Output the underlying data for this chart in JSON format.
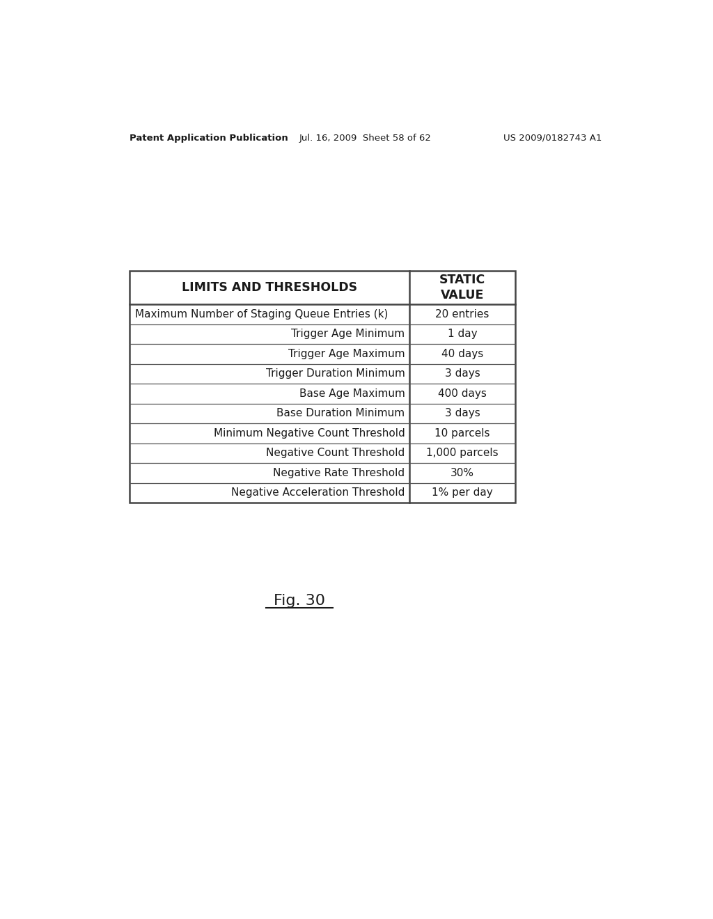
{
  "header_left": "Patent Application Publication",
  "header_mid": "Jul. 16, 2009  Sheet 58 of 62",
  "header_right": "US 2009/0182743 A1",
  "fig_label": "Fig. 30",
  "col1_header": "LIMITS AND THRESHOLDS",
  "col2_header": "STATIC\nVALUE",
  "rows": [
    [
      "Maximum Number of Staging Queue Entries (k)",
      "20 entries"
    ],
    [
      "Trigger Age Minimum",
      "1 day"
    ],
    [
      "Trigger Age Maximum",
      "40 days"
    ],
    [
      "Trigger Duration Minimum",
      "3 days"
    ],
    [
      "Base Age Maximum",
      "400 days"
    ],
    [
      "Base Duration Minimum",
      "3 days"
    ],
    [
      "Minimum Negative Count Threshold",
      "10 parcels"
    ],
    [
      "Negative Count Threshold",
      "1,000 parcels"
    ],
    [
      "Negative Rate Threshold",
      "30%"
    ],
    [
      "Negative Acceleration Threshold",
      "1% per day"
    ]
  ],
  "background_color": "#ffffff",
  "text_color": "#1a1a1a",
  "table_border_color": "#444444",
  "table_inner_color": "#555555",
  "font_size_patent": 9.5,
  "font_size_header": 12.5,
  "font_size_rows": 11.0,
  "font_size_fig": 16
}
